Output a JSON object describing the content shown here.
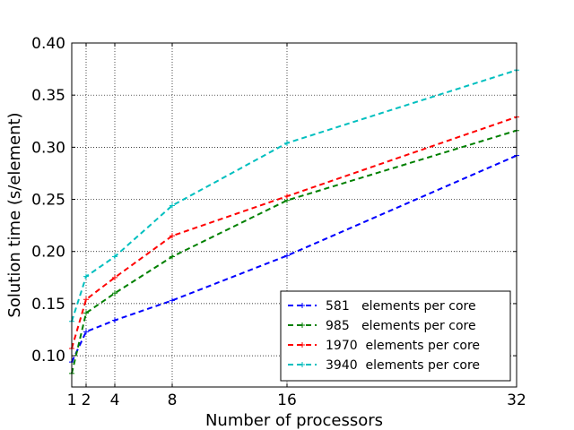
{
  "chart_data": {
    "type": "line",
    "title": "",
    "xlabel": "Number of processors",
    "ylabel": "Solution time (s/element)",
    "x": [
      1,
      2,
      4,
      8,
      16,
      32
    ],
    "xticks": [
      1,
      2,
      4,
      8,
      16,
      32
    ],
    "xtick_labels": [
      "1",
      "2",
      "4",
      "8",
      "16",
      "32"
    ],
    "yticks": [
      0.1,
      0.15,
      0.2,
      0.25,
      0.3,
      0.35,
      0.4
    ],
    "ytick_labels": [
      "0.10",
      "0.15",
      "0.20",
      "0.25",
      "0.30",
      "0.35",
      "0.40"
    ],
    "xlim": [
      1,
      32
    ],
    "ylim": [
      0.07,
      0.4
    ],
    "grid": true,
    "legend_position": "lower-right",
    "series": [
      {
        "name": "581   elements per core",
        "color": "#0000ff",
        "values": [
          0.094,
          0.123,
          0.134,
          0.153,
          0.196,
          0.292
        ]
      },
      {
        "name": "985   elements per core",
        "color": "#008000",
        "values": [
          0.083,
          0.141,
          0.16,
          0.195,
          0.249,
          0.316
        ]
      },
      {
        "name": "1970  elements per core",
        "color": "#ff0000",
        "values": [
          0.107,
          0.154,
          0.175,
          0.215,
          0.253,
          0.329
        ]
      },
      {
        "name": "3940  elements per core",
        "color": "#00bfbf",
        "values": [
          0.133,
          0.176,
          0.195,
          0.244,
          0.304,
          0.374
        ]
      }
    ]
  }
}
